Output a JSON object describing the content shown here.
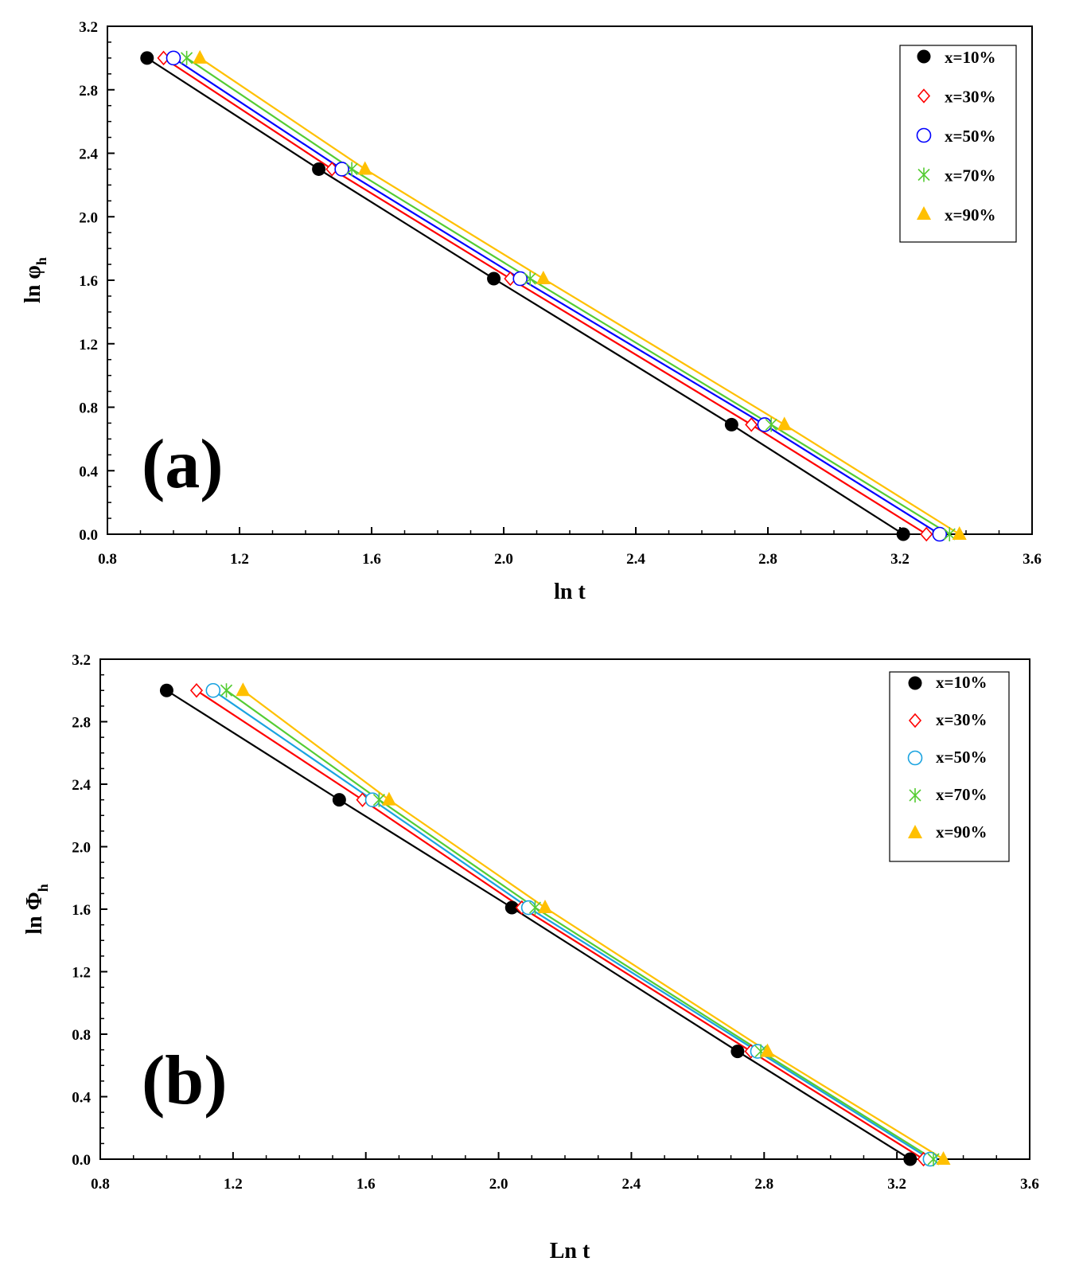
{
  "chart_data": [
    {
      "panel": "(a)",
      "type": "line",
      "xlabel": "ln t",
      "ylabel_main": "ln φ",
      "ylabel_sub": "h",
      "xlim": [
        0.8,
        3.6
      ],
      "ylim": [
        0.0,
        3.2
      ],
      "xticks": [
        "0.8",
        "1.2",
        "1.6",
        "2.0",
        "2.4",
        "2.8",
        "3.2",
        "3.6"
      ],
      "yticks": [
        "0.0",
        "0.4",
        "0.8",
        "1.2",
        "1.6",
        "2.0",
        "2.4",
        "2.8",
        "3.2"
      ],
      "grid": false,
      "legend_position": "top-right",
      "series": [
        {
          "name": "x=10%",
          "marker": "filled-circle",
          "color": "#000000",
          "x": [
            0.92,
            1.44,
            1.97,
            2.69,
            3.21
          ],
          "y": [
            3.0,
            2.3,
            1.61,
            0.69,
            0.0
          ]
        },
        {
          "name": "x=30%",
          "marker": "open-diamond",
          "color": "#ff0000",
          "x": [
            0.97,
            1.48,
            2.02,
            2.75,
            3.28
          ],
          "y": [
            3.0,
            2.3,
            1.61,
            0.69,
            0.0
          ]
        },
        {
          "name": "x=50%",
          "marker": "open-circle",
          "color": "#0000ff",
          "x": [
            1.0,
            1.51,
            2.05,
            2.79,
            3.32
          ],
          "y": [
            3.0,
            2.3,
            1.61,
            0.69,
            0.0
          ]
        },
        {
          "name": "x=70%",
          "marker": "asterisk",
          "color": "#55cc33",
          "x": [
            1.04,
            1.54,
            2.08,
            2.81,
            3.35
          ],
          "y": [
            3.0,
            2.3,
            1.61,
            0.69,
            0.0
          ]
        },
        {
          "name": "x=90%",
          "marker": "filled-triangle",
          "color": "#ffc000",
          "x": [
            1.08,
            1.58,
            2.12,
            2.85,
            3.38
          ],
          "y": [
            3.0,
            2.3,
            1.61,
            0.69,
            0.0
          ]
        }
      ]
    },
    {
      "panel": "(b)",
      "type": "line",
      "xlabel": "Ln t",
      "ylabel_main": "ln Φ",
      "ylabel_sub": "h",
      "xlim": [
        0.8,
        3.6
      ],
      "ylim": [
        0.0,
        3.2
      ],
      "xticks": [
        "0.8",
        "1.2",
        "1.6",
        "2.0",
        "2.4",
        "2.8",
        "3.2",
        "3.6"
      ],
      "yticks": [
        "0.0",
        "0.4",
        "0.8",
        "1.2",
        "1.6",
        "2.0",
        "2.4",
        "2.8",
        "3.2"
      ],
      "grid": false,
      "legend_position": "top-right",
      "series": [
        {
          "name": "x=10%",
          "marker": "filled-circle",
          "color": "#000000",
          "x": [
            1.0,
            1.52,
            2.04,
            2.72,
            3.24
          ],
          "y": [
            3.0,
            2.3,
            1.61,
            0.69,
            0.0
          ]
        },
        {
          "name": "x=30%",
          "marker": "open-diamond",
          "color": "#ff0000",
          "x": [
            1.09,
            1.59,
            2.07,
            2.76,
            3.28
          ],
          "y": [
            3.0,
            2.3,
            1.61,
            0.69,
            0.0
          ]
        },
        {
          "name": "x=50%",
          "marker": "open-circle",
          "color": "#1aa3e0",
          "x": [
            1.14,
            1.62,
            2.09,
            2.78,
            3.3
          ],
          "y": [
            3.0,
            2.3,
            1.61,
            0.69,
            0.0
          ]
        },
        {
          "name": "x=70%",
          "marker": "asterisk",
          "color": "#55cc33",
          "x": [
            1.18,
            1.64,
            2.11,
            2.79,
            3.31
          ],
          "y": [
            3.0,
            2.3,
            1.61,
            0.69,
            0.0
          ]
        },
        {
          "name": "x=90%",
          "marker": "filled-triangle",
          "color": "#ffc000",
          "x": [
            1.23,
            1.67,
            2.14,
            2.81,
            3.34
          ],
          "y": [
            3.0,
            2.3,
            1.61,
            0.69,
            0.0
          ]
        }
      ]
    }
  ]
}
